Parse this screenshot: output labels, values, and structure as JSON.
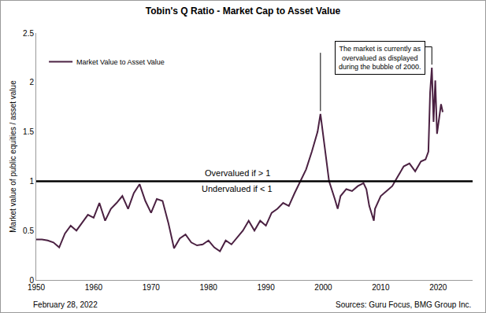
{
  "chart_data": {
    "type": "line",
    "title": "Tobin's Q Ratio - Market Cap to Asset Value",
    "y_label": "Market value of public equities / asset value",
    "x": [
      1950,
      1951,
      1952,
      1953,
      1954,
      1955,
      1956,
      1957,
      1958,
      1959,
      1960,
      1961,
      1962,
      1963,
      1964,
      1965,
      1966,
      1967,
      1968,
      1969,
      1970,
      1971,
      1972,
      1973,
      1974,
      1975,
      1976,
      1977,
      1978,
      1979,
      1980,
      1981,
      1982,
      1983,
      1984,
      1985,
      1986,
      1987,
      1988,
      1989,
      1990,
      1991,
      1992,
      1993,
      1994,
      1995,
      1996,
      1997,
      1998,
      1999,
      1999.5,
      2000,
      2000.5,
      2001,
      2002,
      2002.5,
      2003,
      2004,
      2005,
      2006,
      2007,
      2007.5,
      2008,
      2008.8,
      2009,
      2010,
      2011,
      2012,
      2013,
      2014,
      2015,
      2016,
      2017,
      2017.8,
      2018.3,
      2018.6,
      2018.9,
      2019.2,
      2019.5,
      2019.8,
      2020.2,
      2020.5,
      2020.8
    ],
    "series": [
      {
        "name": "Market Value to Asset Value",
        "color": "#4b2142",
        "values": [
          0.41,
          0.41,
          0.4,
          0.38,
          0.33,
          0.47,
          0.55,
          0.5,
          0.58,
          0.66,
          0.63,
          0.78,
          0.6,
          0.72,
          0.78,
          0.85,
          0.72,
          0.88,
          0.97,
          0.8,
          0.68,
          0.82,
          0.8,
          0.58,
          0.32,
          0.42,
          0.46,
          0.38,
          0.35,
          0.36,
          0.4,
          0.33,
          0.29,
          0.4,
          0.36,
          0.43,
          0.5,
          0.6,
          0.5,
          0.6,
          0.55,
          0.68,
          0.72,
          0.78,
          0.75,
          0.88,
          1.0,
          1.12,
          1.3,
          1.5,
          1.68,
          1.45,
          1.2,
          1.0,
          0.82,
          0.72,
          0.85,
          0.92,
          0.9,
          0.95,
          0.98,
          0.92,
          0.75,
          0.6,
          0.72,
          0.85,
          0.9,
          0.95,
          1.05,
          1.15,
          1.18,
          1.1,
          1.2,
          1.22,
          1.3,
          1.9,
          2.15,
          1.6,
          2.02,
          1.48,
          1.65,
          1.78,
          1.7
        ]
      }
    ],
    "xlim": [
      1950,
      2026
    ],
    "xticks": [
      1950,
      1960,
      1970,
      1980,
      1990,
      2000,
      2010,
      2020
    ],
    "ylim": [
      0,
      2.5
    ],
    "yticks": [
      0,
      0.5,
      1,
      1.5,
      2,
      2.5
    ],
    "grid": false,
    "legend": "upper left",
    "threshold": {
      "value": 1,
      "above_label": "Overvalued if > 1",
      "below_label": "Undervalued if < 1"
    },
    "annotation": "The market is currently as\novervalued as displayed\nduring the bubble of 2000.",
    "date": "February 28, 2022",
    "source": "Sources: Guru Focus, BMG Group Inc."
  }
}
